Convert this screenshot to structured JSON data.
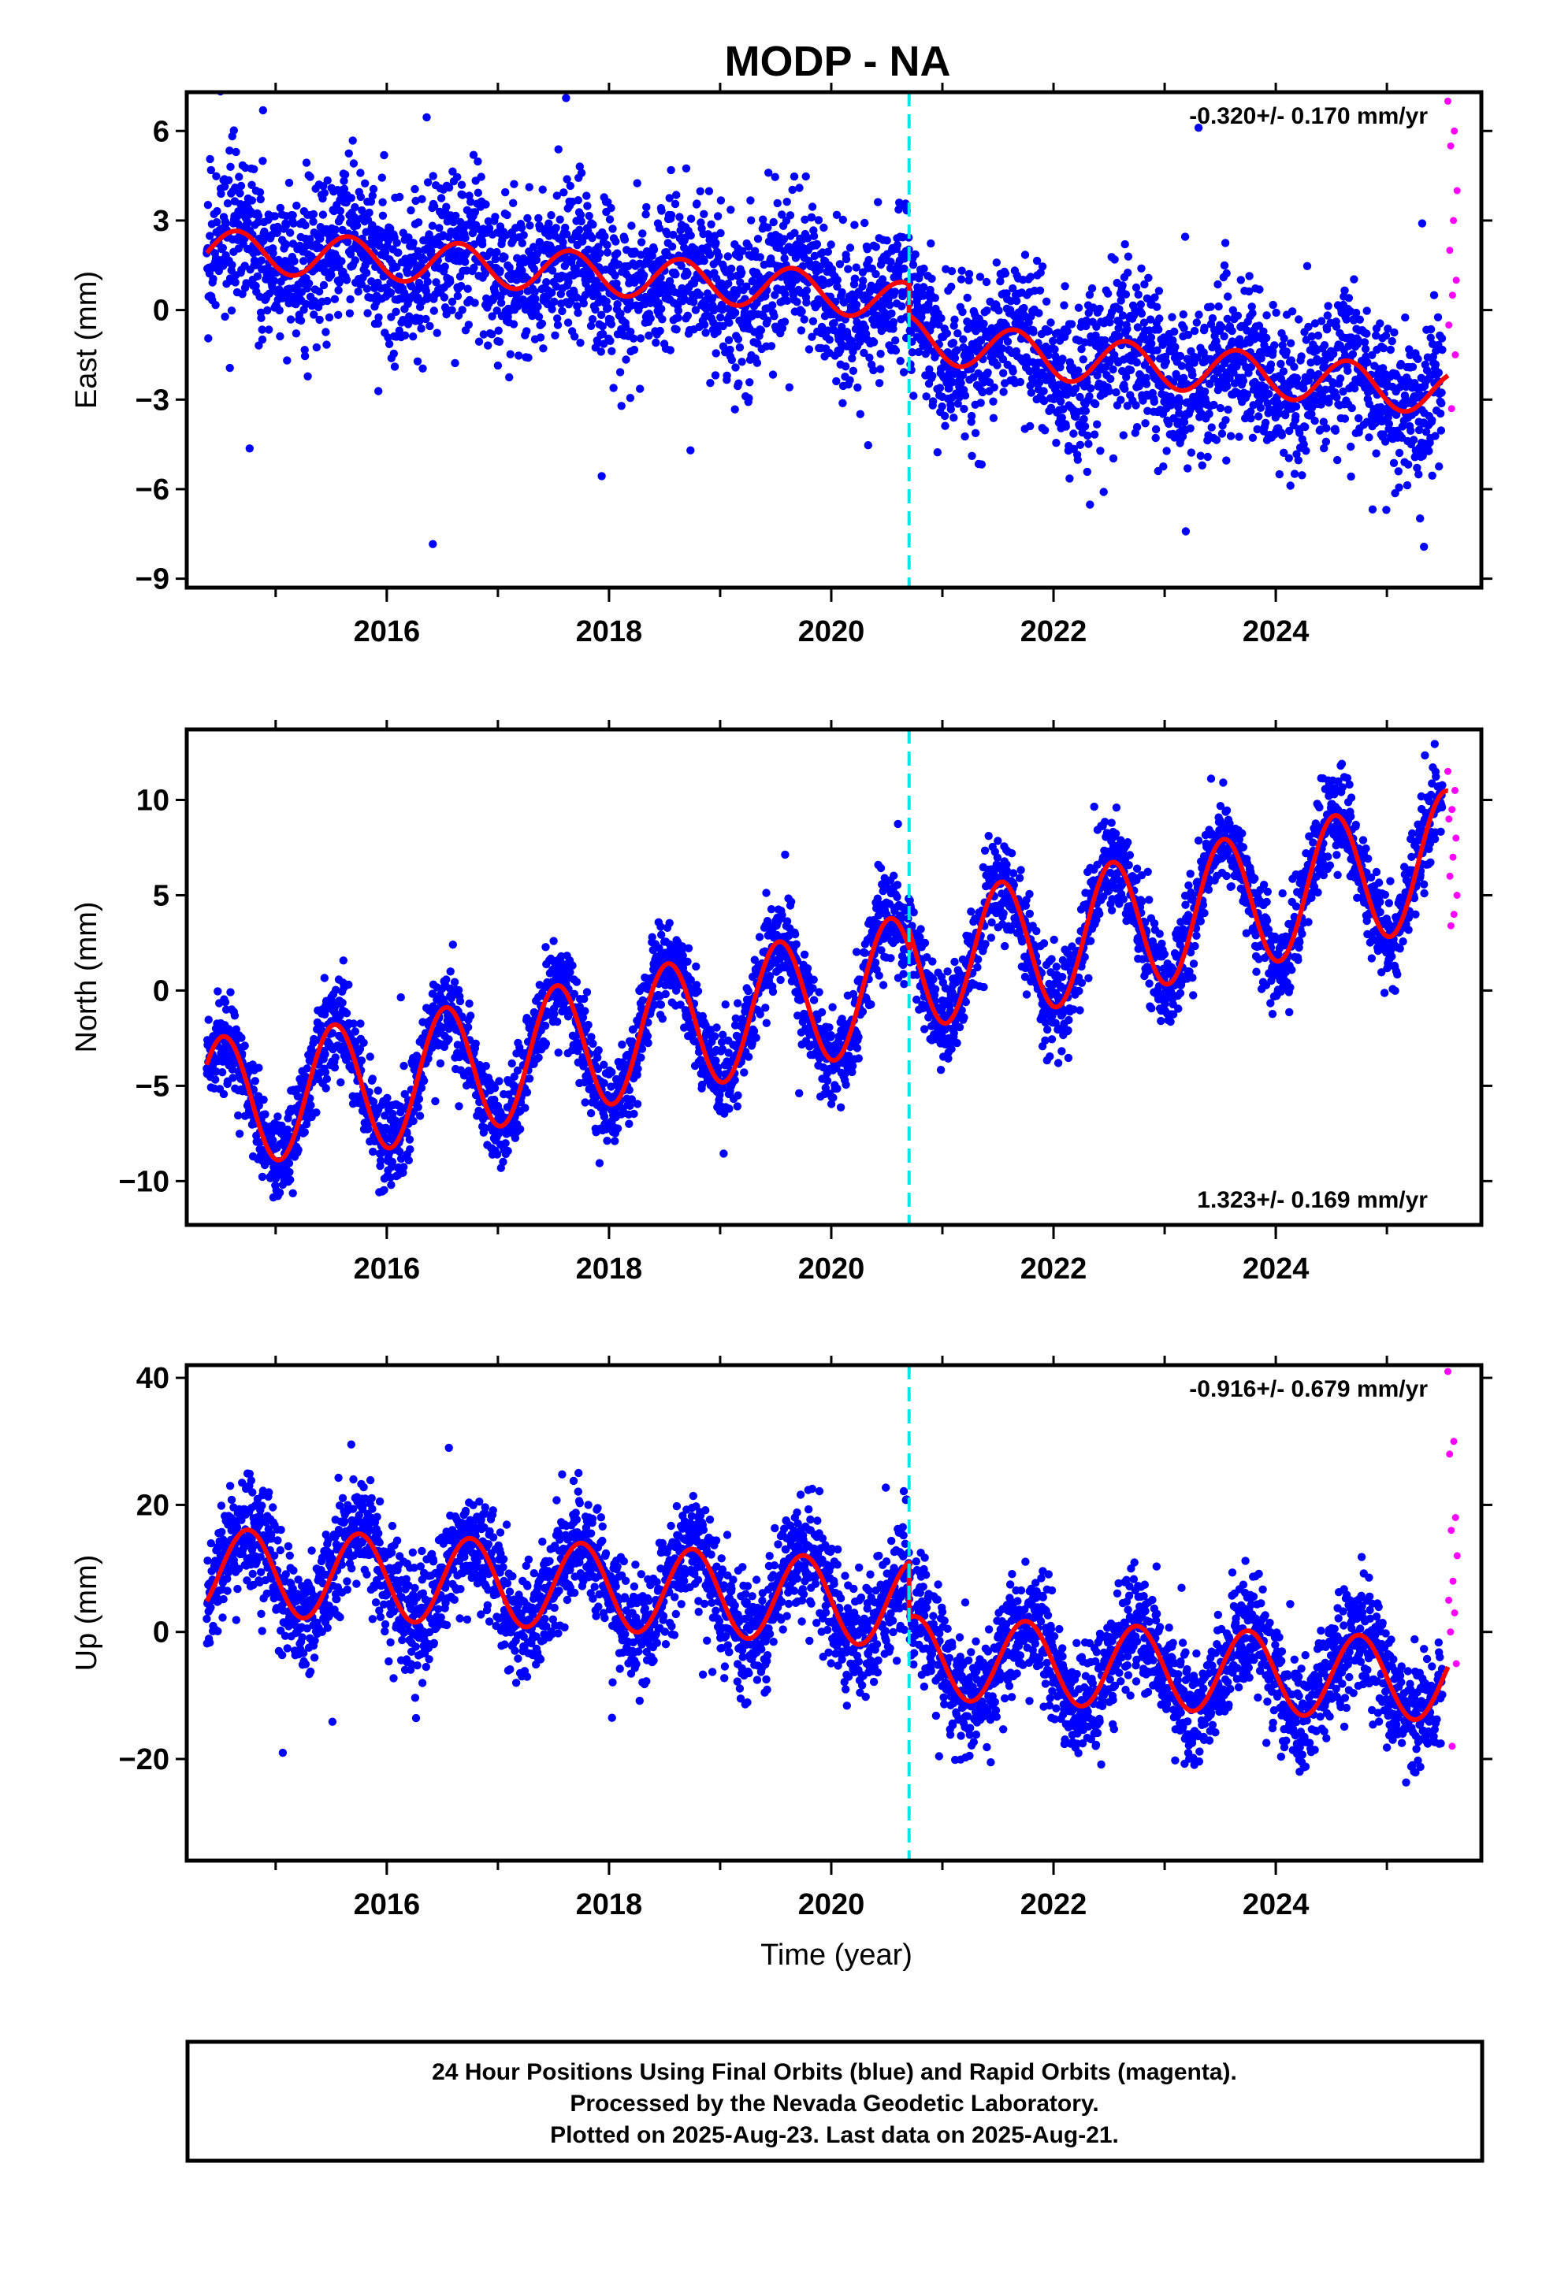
{
  "title": "MODP - NA",
  "footer": {
    "line1": "24 Hour Positions Using Final Orbits (blue) and Rapid Orbits (magenta).",
    "line2": "Processed by the Nevada Geodetic Laboratory.",
    "line3": "Plotted on 2025-Aug-23. Last data on 2025-Aug-21."
  },
  "colors": {
    "final_orbits": "#0000ff",
    "rapid_orbits": "#ff00ff",
    "model_fit": "#ff0000",
    "equipment_change": "#00e5e5",
    "frame": "#000000"
  },
  "chart_data": [
    {
      "type": "scatter",
      "component": "east",
      "ylabel": "East (mm)",
      "xlabel": "",
      "xlim": [
        2014.2,
        2025.85
      ],
      "ylim": [
        -9.3,
        7.3
      ],
      "xticks": [
        2016,
        2018,
        2020,
        2022,
        2024
      ],
      "yticks": [
        -9,
        -6,
        -3,
        0,
        3,
        6
      ],
      "ytick_labels": [
        "−9",
        "−6",
        "−3",
        "0",
        "3",
        "6"
      ],
      "rate_label": "-0.320+/- 0.170 mm/yr",
      "rate_label_position": "top-right",
      "equipment_change_x": 2020.7,
      "data_span": [
        2014.38,
        2025.5
      ],
      "rapid_span": [
        2025.5,
        2025.64
      ],
      "series": [
        {
          "name": "final orbits",
          "color": "#0000ff",
          "points": "daily positions 2014.4–2025.5, scatter ±1.3 mm about the model"
        },
        {
          "name": "model",
          "color": "#ff0000"
        }
      ],
      "model": {
        "before": {
          "x": [
            2014.38,
            2016.0,
            2018.0,
            2020.0,
            2020.7
          ],
          "trend": [
            2.0,
            1.7,
            1.2,
            0.6,
            0.2
          ],
          "annual_amplitude": 0.7,
          "peak_phase": 0.65
        },
        "after": {
          "x": [
            2020.7,
            2022.0,
            2024.0,
            2025.55
          ],
          "trend": [
            -0.9,
            -1.6,
            -2.2,
            -2.8
          ],
          "annual_amplitude": 0.75,
          "peak_phase": 0.65
        }
      },
      "rapid_values": [
        7.0,
        6.0,
        5.5,
        4.0,
        3.0,
        2.0,
        1.0,
        0.5,
        -0.5,
        -1.5,
        -3.3
      ]
    },
    {
      "type": "scatter",
      "component": "north",
      "ylabel": "North (mm)",
      "xlabel": "",
      "xlim": [
        2014.2,
        2025.85
      ],
      "ylim": [
        -12.3,
        13.7
      ],
      "xticks": [
        2016,
        2018,
        2020,
        2022,
        2024
      ],
      "yticks": [
        -10,
        -5,
        0,
        5,
        10
      ],
      "ytick_labels": [
        "−10",
        "−5",
        "0",
        "5",
        "10"
      ],
      "rate_label": "1.323+/- 0.169 mm/yr",
      "rate_label_position": "bottom-right",
      "equipment_change_x": 2020.7,
      "data_span": [
        2014.38,
        2025.5
      ],
      "rapid_span": [
        2025.5,
        2025.64
      ],
      "series": [
        {
          "name": "final orbits",
          "color": "#0000ff",
          "points": "daily positions 2014.4–2025.5, scatter ±1.2 mm about the model"
        },
        {
          "name": "model",
          "color": "#ff0000"
        }
      ],
      "model": {
        "before": {
          "x": [
            2014.38,
            2016.0,
            2018.0,
            2020.0,
            2020.7
          ],
          "trend": [
            -5.9,
            -4.9,
            -2.6,
            -0.3,
            0.6
          ],
          "annual_amplitude": 3.4,
          "peak_phase": 0.53
        },
        "after": {
          "x": [
            2020.7,
            2022.0,
            2024.0,
            2025.55
          ],
          "trend": [
            1.5,
            2.6,
            5.0,
            7.0
          ],
          "annual_amplitude": 3.5,
          "peak_phase": 0.53
        }
      },
      "rapid_values": [
        11.5,
        10.5,
        9.5,
        9.0,
        8.0,
        7.0,
        6.0,
        5.0,
        4.0,
        3.4
      ]
    },
    {
      "type": "scatter",
      "component": "up",
      "ylabel": "Up (mm)",
      "xlabel": "Time (year)",
      "xlim": [
        2014.2,
        2025.85
      ],
      "ylim": [
        -36,
        42
      ],
      "xticks": [
        2016,
        2018,
        2020,
        2022,
        2024
      ],
      "yticks": [
        -20,
        0,
        20,
        40
      ],
      "ytick_labels": [
        "−20",
        "0",
        "20",
        "40"
      ],
      "rate_label": "-0.916+/- 0.679 mm/yr",
      "rate_label_position": "top-right",
      "equipment_change_x": 2020.7,
      "data_span": [
        2014.38,
        2025.5
      ],
      "rapid_span": [
        2025.5,
        2025.64
      ],
      "series": [
        {
          "name": "final orbits",
          "color": "#0000ff",
          "points": "daily positions 2014.4–2025.5, scatter ±4.5 mm about the model"
        },
        {
          "name": "model",
          "color": "#ff0000"
        }
      ],
      "model": {
        "before": {
          "x": [
            2014.38,
            2016.0,
            2018.0,
            2020.0,
            2020.7
          ],
          "trend": [
            9.5,
            8.5,
            7.0,
            5.0,
            4.5
          ],
          "annual_amplitude": 6.8,
          "peak_phase": 0.75
        },
        "after": {
          "x": [
            2020.7,
            2022.0,
            2024.0,
            2025.55
          ],
          "trend": [
            -4.0,
            -5.0,
            -6.5,
            -7.5
          ],
          "annual_amplitude": 6.5,
          "peak_phase": 0.75
        }
      },
      "rapid_values": [
        41,
        30,
        28,
        18,
        16,
        12,
        8,
        5,
        3,
        0,
        -5,
        -18
      ]
    }
  ]
}
